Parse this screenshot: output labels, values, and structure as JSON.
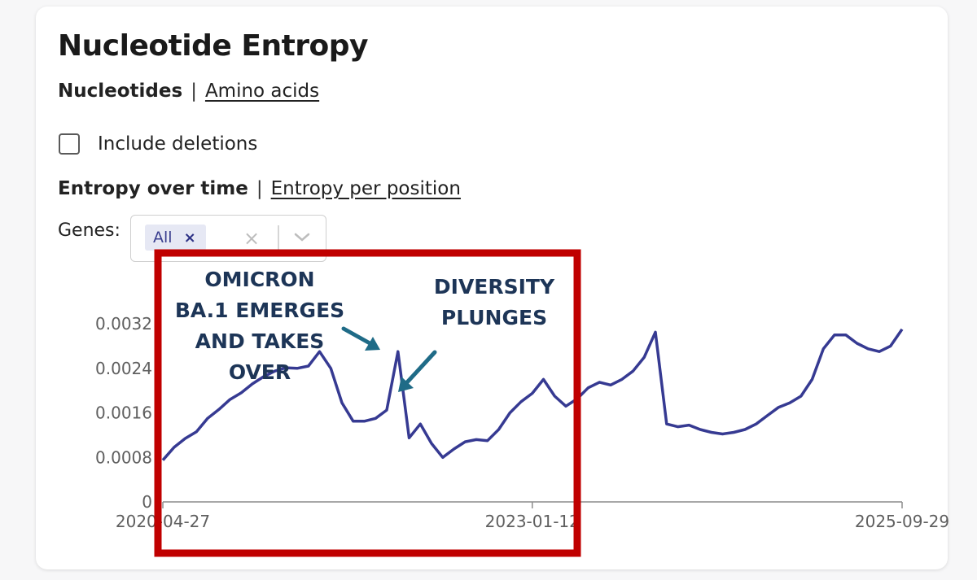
{
  "title": "Nucleotide Entropy",
  "seq_toggle": {
    "active": "Nucleotides",
    "separator": "|",
    "other": "Amino acids"
  },
  "deletions": {
    "label": "Include deletions",
    "checked": false
  },
  "view_toggle": {
    "active": "Entropy over time",
    "separator": "|",
    "other": "Entropy per position"
  },
  "genes": {
    "label": "Genes:",
    "selected": "All",
    "remove_glyph": "×",
    "clear_glyph": "×"
  },
  "icons": {
    "chip_remove": "close-icon",
    "clear": "clear-icon",
    "dropdown": "chevron-down-icon",
    "deletions": "checkbox-icon"
  },
  "annotations": {
    "omicron": [
      "OMICRON",
      "BA.1 EMERGES",
      "AND TAKES",
      "OVER"
    ],
    "diversity": [
      "DIVERSITY",
      "PLUNGES"
    ]
  },
  "colors": {
    "series": "#363a92",
    "highlight_box": "#c00000",
    "annotation_text": "#1d3557",
    "arrow": "#1f6b87"
  },
  "chart_data": {
    "type": "line",
    "xlabel": "",
    "ylabel": "",
    "x_ticks": [
      "2020-04-27",
      "2023-01-12",
      "2025-09-29"
    ],
    "y_ticks": [
      0,
      0.0008,
      0.0016,
      0.0024,
      0.0032
    ],
    "y_tick_labels": [
      "0",
      "0.0008",
      "0.0016",
      "0.0024",
      "0.0032"
    ],
    "xlim": [
      "2020-04-27",
      "2025-09-29"
    ],
    "ylim": [
      0,
      0.0032
    ],
    "grid": false,
    "series": [
      {
        "x": [
          "2020-04-27",
          "2020-05-27",
          "2020-06-26",
          "2020-07-26",
          "2020-08-25",
          "2020-09-24",
          "2020-10-24",
          "2020-11-23",
          "2020-12-23",
          "2021-01-22",
          "2021-02-21",
          "2021-03-23",
          "2021-04-22",
          "2021-05-22",
          "2021-06-21",
          "2021-07-21",
          "2021-08-20",
          "2021-09-19",
          "2021-10-19",
          "2021-11-18",
          "2021-12-18",
          "2022-01-17",
          "2022-02-16",
          "2022-03-18",
          "2022-04-17",
          "2022-05-17",
          "2022-06-16",
          "2022-07-16",
          "2022-08-15",
          "2022-09-14",
          "2022-10-14",
          "2022-11-13",
          "2022-12-13",
          "2023-01-12",
          "2023-02-11",
          "2023-03-13",
          "2023-04-12",
          "2023-05-12",
          "2023-06-11",
          "2023-07-11",
          "2023-08-10",
          "2023-09-09",
          "2023-10-09",
          "2023-11-08",
          "2023-12-08",
          "2024-01-07",
          "2024-02-06",
          "2024-03-07",
          "2024-04-06",
          "2024-05-06",
          "2024-06-05",
          "2024-07-05",
          "2024-08-04",
          "2024-09-03",
          "2024-10-03",
          "2024-11-02",
          "2024-12-02",
          "2025-01-01",
          "2025-01-31",
          "2025-03-02",
          "2025-04-01",
          "2025-05-01",
          "2025-05-31",
          "2025-06-30",
          "2025-07-30",
          "2025-08-29",
          "2025-09-29"
        ],
        "y": [
          0.00075,
          0.00098,
          0.00114,
          0.00126,
          0.0015,
          0.00166,
          0.00184,
          0.00196,
          0.00212,
          0.00225,
          0.00235,
          0.00241,
          0.0024,
          0.00244,
          0.0027,
          0.0024,
          0.00178,
          0.00145,
          0.00145,
          0.0015,
          0.00165,
          0.0027,
          0.00115,
          0.0014,
          0.00105,
          0.0008,
          0.00095,
          0.00108,
          0.00112,
          0.0011,
          0.0013,
          0.0016,
          0.0018,
          0.00195,
          0.0022,
          0.0019,
          0.00172,
          0.00185,
          0.00205,
          0.00215,
          0.0021,
          0.0022,
          0.00235,
          0.0026,
          0.00305,
          0.0014,
          0.00135,
          0.00138,
          0.0013,
          0.00125,
          0.00122,
          0.00125,
          0.0013,
          0.0014,
          0.00155,
          0.0017,
          0.00178,
          0.0019,
          0.0022,
          0.00275,
          0.003,
          0.003,
          0.00285,
          0.00275,
          0.0027,
          0.0028,
          0.0031
        ]
      }
    ]
  }
}
